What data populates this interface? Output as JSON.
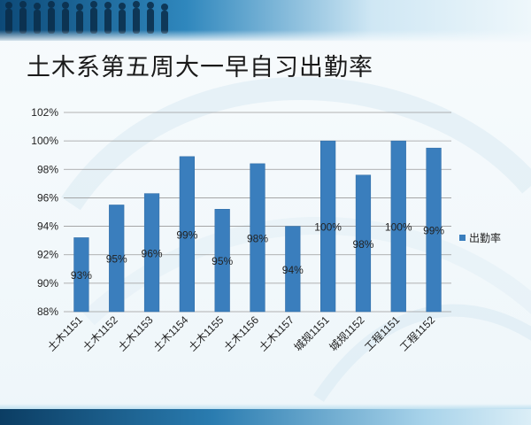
{
  "slide": {
    "title": "土木系第五周大一早自习出勤率"
  },
  "colors": {
    "bar": "#3a7ebd",
    "bar_edge": "#2e6aa3",
    "grid": "#9a9a9a",
    "banner_dark": "#0d4a78",
    "banner_light": "#2f87bd"
  },
  "chart_data": {
    "type": "bar",
    "categories": [
      "土木1151",
      "土木1152",
      "土木1153",
      "土木1154",
      "土木1155",
      "土木1156",
      "土木1157",
      "城规1151",
      "城规1152",
      "工程1151",
      "工程1152"
    ],
    "series": [
      {
        "name": "出勤率",
        "values": [
          93.2,
          95.5,
          96.3,
          98.9,
          95.2,
          98.4,
          94.0,
          100.0,
          97.6,
          100.0,
          99.5
        ],
        "data_labels": [
          "93%",
          "95%",
          "96%",
          "99%",
          "95%",
          "98%",
          "94%",
          "100%",
          "98%",
          "100%",
          "99%"
        ]
      }
    ],
    "ylim": [
      88,
      102
    ],
    "yticks": [
      88,
      90,
      92,
      94,
      96,
      98,
      100,
      102
    ],
    "ytick_labels": [
      "88%",
      "90%",
      "92%",
      "94%",
      "96%",
      "98%",
      "100%",
      "102%"
    ],
    "xlabel": "",
    "ylabel": "",
    "grid": true,
    "legend_position": "right"
  }
}
